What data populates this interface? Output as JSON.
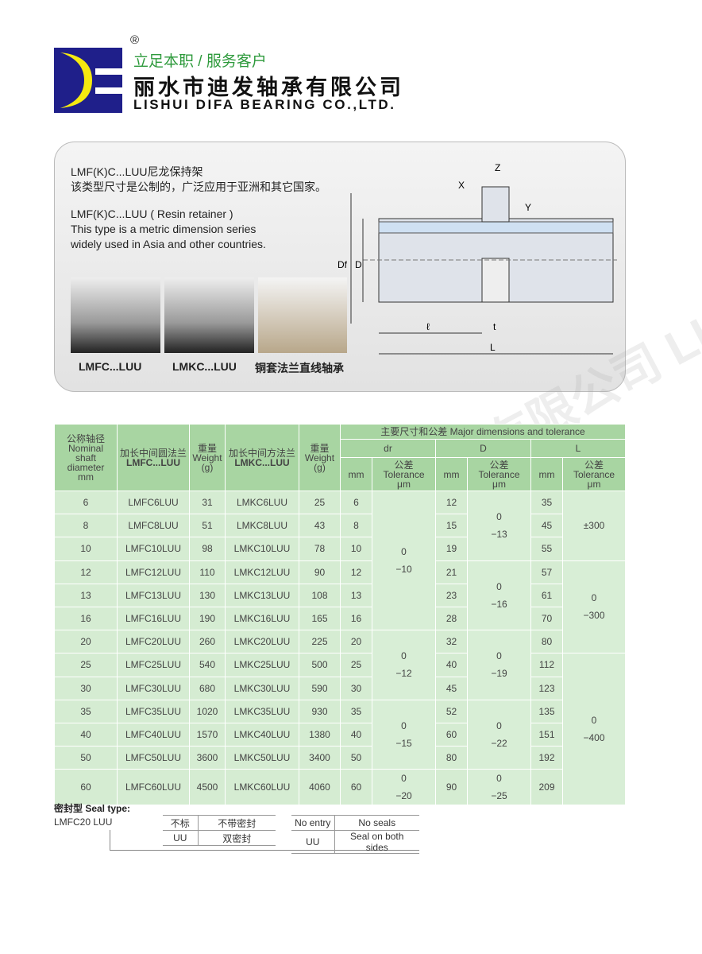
{
  "header": {
    "registered_mark": "®",
    "slogan": "立足本职 / 服务客户",
    "company_cn": "丽水市迪发轴承有限公司",
    "company_en": "LISHUI DIFA BEARING CO.,LTD.",
    "logo_text": "DF",
    "brand_colors": {
      "blue": "#1f1f8a",
      "yellow": "#f5ea10",
      "green": "#2e9a3c"
    }
  },
  "intro": {
    "cn_title": "LMF(K)C...LUU尼龙保持架",
    "cn_desc": "该类型尺寸是公制的，广泛应用于亚洲和其它国家。",
    "en_title": "LMF(K)C...LUU ( Resin retainer )",
    "en_desc1": "This type is a metric dimension series",
    "en_desc2": "widely used in Asia and other countries.",
    "photo_labels": [
      "LMFC...LUU",
      "LMKC...LUU",
      "铜套法兰直线轴承"
    ],
    "diagram_labels": {
      "z": "Z",
      "x": "X",
      "y": "Y",
      "df": "Df",
      "d": "D",
      "l_small": "ℓ",
      "t": "t",
      "L": "L"
    }
  },
  "watermark": "丽水市迪发轴承有限公司 LISHUI DIFA BEARING CO.,LTD.",
  "table": {
    "h_nominal": [
      "公称轴径",
      "Nominal",
      "shaft",
      "diameter",
      "mm"
    ],
    "h_lmfc": [
      "加长中间圆法兰",
      "LMFC...LUU"
    ],
    "h_weight": [
      "重量",
      "Weight",
      "(g)"
    ],
    "h_lmkc": [
      "加长中间方法兰",
      "LMKC...LUU"
    ],
    "h_major": "主要尺寸和公差 Major dimensions and tolerance",
    "h_dr": "dr",
    "h_D": "D",
    "h_L": "L",
    "h_mm": "mm",
    "h_tol": [
      "公差",
      "Tolerance",
      "μm"
    ],
    "rows": [
      [
        "6",
        "LMFC6LUU",
        "31",
        "LMKC6LUU",
        "25",
        "6",
        "12",
        "35"
      ],
      [
        "8",
        "LMFC8LUU",
        "51",
        "LMKC8LUU",
        "43",
        "8",
        "15",
        "45"
      ],
      [
        "10",
        "LMFC10LUU",
        "98",
        "LMKC10LUU",
        "78",
        "10",
        "19",
        "55"
      ],
      [
        "12",
        "LMFC12LUU",
        "110",
        "LMKC12LUU",
        "90",
        "12",
        "21",
        "57"
      ],
      [
        "13",
        "LMFC13LUU",
        "130",
        "LMKC13LUU",
        "108",
        "13",
        "23",
        "61"
      ],
      [
        "16",
        "LMFC16LUU",
        "190",
        "LMKC16LUU",
        "165",
        "16",
        "28",
        "70"
      ],
      [
        "20",
        "LMFC20LUU",
        "260",
        "LMKC20LUU",
        "225",
        "20",
        "32",
        "80"
      ],
      [
        "25",
        "LMFC25LUU",
        "540",
        "LMKC25LUU",
        "500",
        "25",
        "40",
        "112"
      ],
      [
        "30",
        "LMFC30LUU",
        "680",
        "LMKC30LUU",
        "590",
        "30",
        "45",
        "123"
      ],
      [
        "35",
        "LMFC35LUU",
        "1020",
        "LMKC35LUU",
        "930",
        "35",
        "52",
        "135"
      ],
      [
        "40",
        "LMFC40LUU",
        "1570",
        "LMKC40LUU",
        "1380",
        "40",
        "60",
        "151"
      ],
      [
        "50",
        "LMFC50LUU",
        "3600",
        "LMKC50LUU",
        "3400",
        "50",
        "80",
        "192"
      ],
      [
        "60",
        "LMFC60LUU",
        "4500",
        "LMKC60LUU",
        "4060",
        "60",
        "90",
        "209"
      ]
    ],
    "dr_tol": [
      {
        "start": 0,
        "span": 6,
        "text": [
          "0",
          "−10"
        ]
      },
      {
        "start": 6,
        "span": 3,
        "text": [
          "0",
          "−12"
        ]
      },
      {
        "start": 9,
        "span": 3,
        "text": [
          "0",
          "−15"
        ]
      },
      {
        "start": 12,
        "span": 1,
        "text": [
          "0",
          "−20"
        ]
      }
    ],
    "D_tol": [
      {
        "start": 0,
        "span": 3,
        "text": [
          "0",
          "−13"
        ]
      },
      {
        "start": 3,
        "span": 3,
        "text": [
          "0",
          "−16"
        ]
      },
      {
        "start": 6,
        "span": 3,
        "text": [
          "0",
          "−19"
        ]
      },
      {
        "start": 9,
        "span": 3,
        "text": [
          "0",
          "−22"
        ]
      },
      {
        "start": 12,
        "span": 1,
        "text": [
          "0",
          "−25"
        ]
      }
    ],
    "L_tol": [
      {
        "start": 0,
        "span": 3,
        "text": [
          "±300"
        ]
      },
      {
        "start": 3,
        "span": 4,
        "text": [
          "0",
          "−300"
        ]
      },
      {
        "start": 7,
        "span": 6,
        "text": [
          "0",
          "−400"
        ]
      }
    ]
  },
  "seal": {
    "title": "密封型 Seal type:",
    "code": "LMFC20 LUU",
    "cn_rows": [
      [
        "不标",
        "不带密封"
      ],
      [
        "UU",
        "双密封"
      ]
    ],
    "en_rows": [
      [
        "No entry",
        "No seals"
      ],
      [
        "UU",
        "Seal on both sides"
      ]
    ]
  }
}
